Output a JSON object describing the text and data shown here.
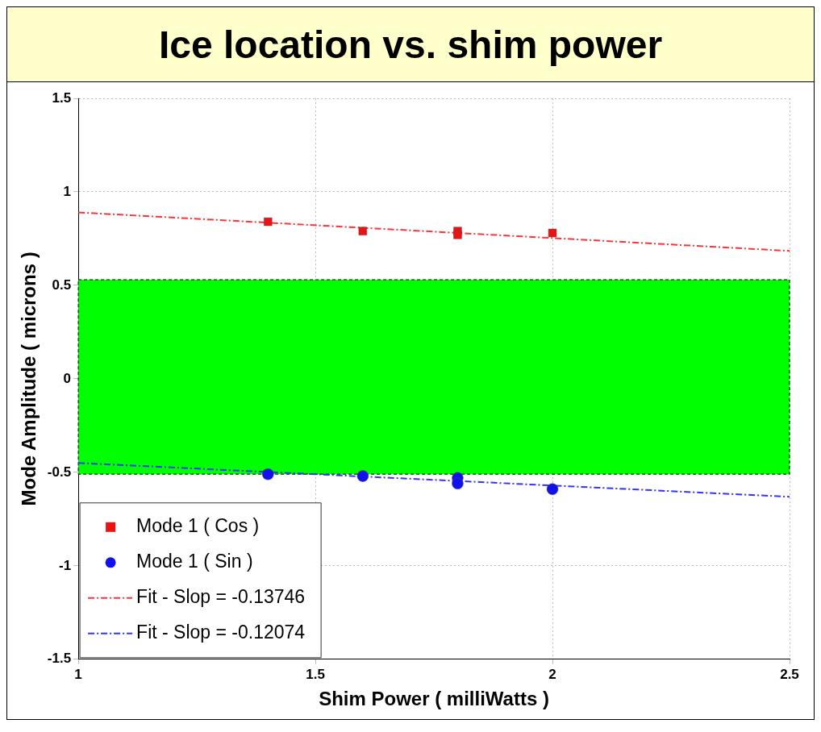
{
  "chart_data": {
    "type": "scatter",
    "title": "Ice location vs. shim power",
    "xlabel": "Shim Power ( milliWatts )",
    "ylabel": "Mode Amplitude ( microns )",
    "xlim": [
      1,
      2.5
    ],
    "xticks": [
      1,
      1.5,
      2,
      2.5
    ],
    "ylim": [
      -1.5,
      1.5
    ],
    "yticks": [
      -1.5,
      -1,
      -0.5,
      0,
      0.5,
      1,
      1.5
    ],
    "grid": true,
    "legend": "bottom left",
    "series": [
      {
        "name": "Mode 1 ( Cos )",
        "marker": "square",
        "color": "#ee1111",
        "x": [
          1.4,
          1.6,
          1.8,
          1.8,
          2.0
        ],
        "values": [
          0.84,
          0.79,
          0.79,
          0.77,
          0.78
        ]
      },
      {
        "name": "Mode 1 ( Sin )",
        "marker": "circle",
        "color": "#1111ee",
        "x": [
          1.4,
          1.6,
          1.8,
          1.8,
          2.0
        ],
        "values": [
          -0.51,
          -0.52,
          -0.53,
          -0.56,
          -0.59
        ]
      },
      {
        "name": "Fit - Slop = -0.13746",
        "type": "line",
        "line_style": "dashed",
        "marker": "none",
        "color": "#ff3333",
        "x": [
          1,
          2.5
        ],
        "values": [
          0.89,
          0.684
        ]
      },
      {
        "name": "Fit - Slop = -0.12074",
        "type": "line",
        "line_style": "dashed",
        "marker": "none",
        "color": "#3333ff",
        "x": [
          1,
          2.5
        ],
        "values": [
          -0.45,
          -0.631
        ]
      }
    ],
    "bands": [
      {
        "axis": "y",
        "from": -0.51,
        "to": 0.53,
        "color": "#00ff00"
      }
    ]
  }
}
